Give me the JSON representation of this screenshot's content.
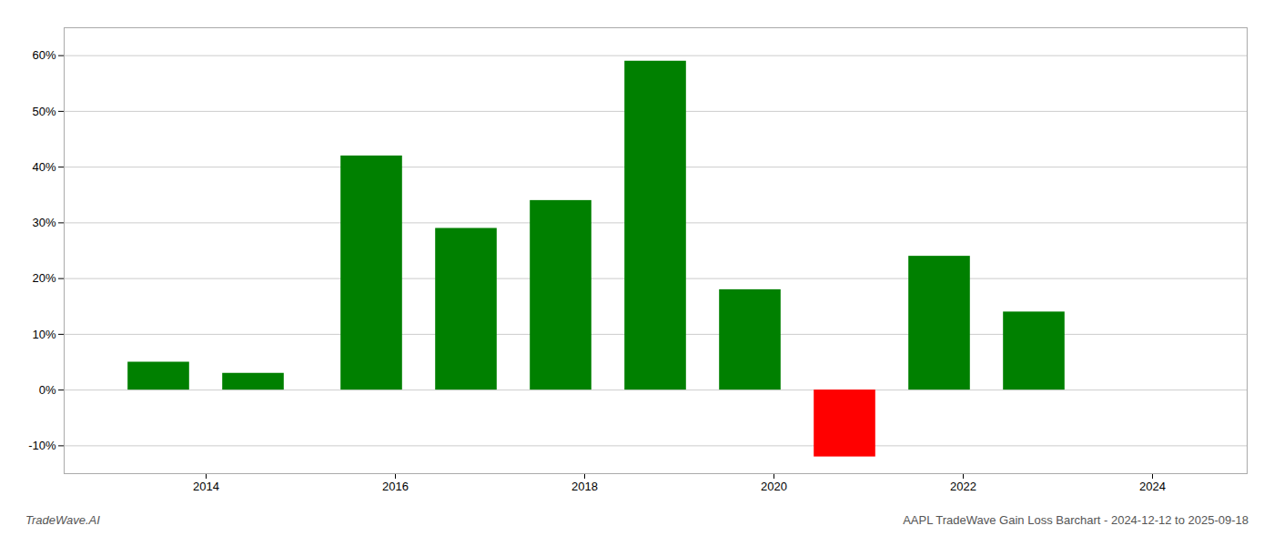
{
  "chart_data": {
    "type": "bar",
    "x": [
      2013.5,
      2014.5,
      2015.75,
      2016.75,
      2017.75,
      2018.75,
      2019.75,
      2020.75,
      2021.75,
      2022.75
    ],
    "values": [
      5.0,
      3.0,
      42.0,
      29.0,
      34.0,
      59.0,
      18.0,
      -12.0,
      24.0,
      14.0
    ],
    "colors": [
      "#008000",
      "#008000",
      "#008000",
      "#008000",
      "#008000",
      "#008000",
      "#008000",
      "#ff0000",
      "#008000",
      "#008000"
    ],
    "xlim": [
      2012.5,
      2025.0
    ],
    "ylim": [
      -15,
      65
    ],
    "xticks": [
      2014,
      2016,
      2018,
      2020,
      2022,
      2024
    ],
    "yticks": [
      {
        "value": -10,
        "label": "-10%"
      },
      {
        "value": 0,
        "label": "0%"
      },
      {
        "value": 10,
        "label": "10%"
      },
      {
        "value": 20,
        "label": "20%"
      },
      {
        "value": 30,
        "label": "30%"
      },
      {
        "value": 40,
        "label": "40%"
      },
      {
        "value": 50,
        "label": "50%"
      },
      {
        "value": 60,
        "label": "60%"
      }
    ],
    "grid": true,
    "annotations": [
      "TradeWave.AI",
      "AAPL TradeWave Gain Loss Barchart - 2024-12-12 to 2025-09-18"
    ]
  }
}
